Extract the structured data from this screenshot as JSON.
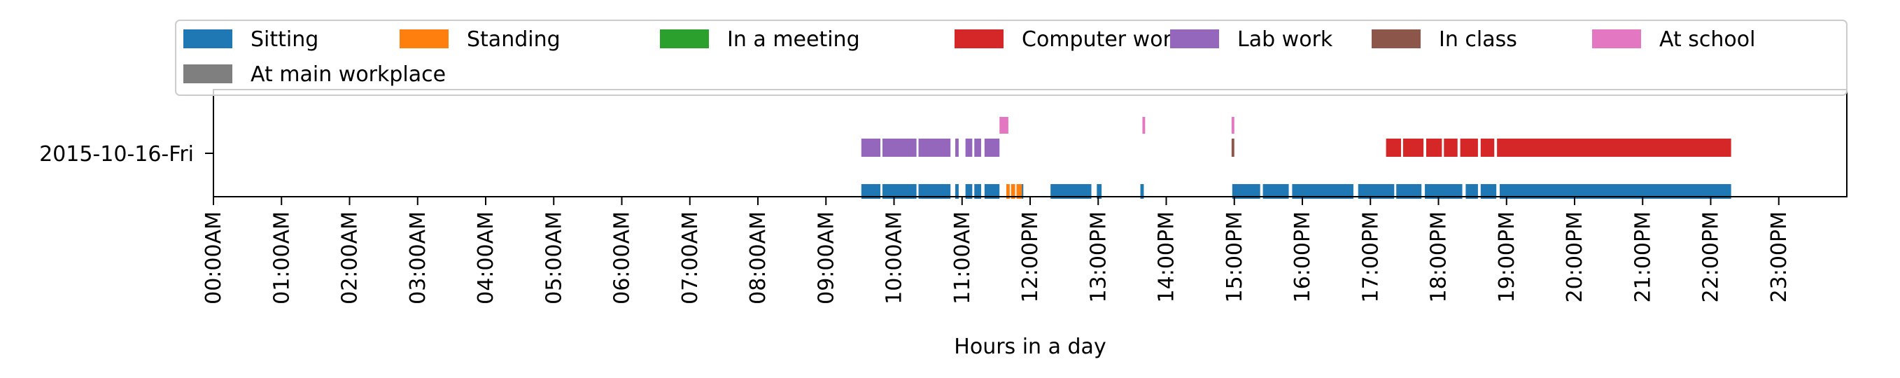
{
  "chart_data": {
    "type": "timeline",
    "xlabel": "Hours in a day",
    "xlim_hours": [
      0,
      24
    ],
    "y_categories": [
      "2015-10-16-Fri"
    ],
    "x_ticks": [
      "00:00AM",
      "01:00AM",
      "02:00AM",
      "03:00AM",
      "04:00AM",
      "05:00AM",
      "06:00AM",
      "07:00AM",
      "08:00AM",
      "09:00AM",
      "10:00AM",
      "11:00AM",
      "12:00PM",
      "13:00PM",
      "14:00PM",
      "15:00PM",
      "16:00PM",
      "17:00PM",
      "18:00PM",
      "19:00PM",
      "20:00PM",
      "21:00PM",
      "22:00PM",
      "23:00PM"
    ],
    "legend_position": "top",
    "series": [
      {
        "name": "Sitting",
        "color": "#1f77b4",
        "lane": "bottom",
        "intervals": [
          [
            9.52,
            9.8
          ],
          [
            9.83,
            10.33
          ],
          [
            10.36,
            10.83
          ],
          [
            10.9,
            10.95
          ],
          [
            11.05,
            11.15
          ],
          [
            11.18,
            11.28
          ],
          [
            11.33,
            11.55
          ],
          [
            11.83,
            11.9
          ],
          [
            12.3,
            12.9
          ],
          [
            12.98,
            13.05
          ],
          [
            13.62,
            13.67
          ],
          [
            14.97,
            15.38
          ],
          [
            15.42,
            15.8
          ],
          [
            15.85,
            16.75
          ],
          [
            16.82,
            17.35
          ],
          [
            17.38,
            17.75
          ],
          [
            17.8,
            18.35
          ],
          [
            18.4,
            18.58
          ],
          [
            18.62,
            18.85
          ],
          [
            18.9,
            22.3
          ]
        ]
      },
      {
        "name": "Standing",
        "color": "#ff7f0e",
        "lane": "bottom",
        "intervals": [
          [
            11.65,
            11.7
          ],
          [
            11.72,
            11.78
          ],
          [
            11.8,
            11.88
          ]
        ]
      },
      {
        "name": "In a meeting",
        "color": "#2ca02c",
        "lane": "bottom",
        "intervals": []
      },
      {
        "name": "Computer work",
        "color": "#d62728",
        "lane": "middle",
        "intervals": [
          [
            17.23,
            17.45
          ],
          [
            17.48,
            17.78
          ],
          [
            17.82,
            18.05
          ],
          [
            18.08,
            18.28
          ],
          [
            18.32,
            18.58
          ],
          [
            18.62,
            18.82
          ],
          [
            18.86,
            22.3
          ]
        ]
      },
      {
        "name": "Lab work",
        "color": "#9467bd",
        "lane": "middle",
        "intervals": [
          [
            9.52,
            9.8
          ],
          [
            9.83,
            10.33
          ],
          [
            10.36,
            10.83
          ],
          [
            10.9,
            10.95
          ],
          [
            11.05,
            11.15
          ],
          [
            11.18,
            11.28
          ],
          [
            11.33,
            11.55
          ]
        ]
      },
      {
        "name": "In class",
        "color": "#8c564b",
        "lane": "middle",
        "intervals": [
          [
            14.96,
            15.0
          ]
        ]
      },
      {
        "name": "At school",
        "color": "#e377c2",
        "lane": "top",
        "intervals": [
          [
            11.55,
            11.68
          ],
          [
            13.65,
            13.69
          ],
          [
            14.96,
            15.0
          ]
        ]
      },
      {
        "name": "At main workplace",
        "color": "#7f7f7f",
        "lane": "top",
        "intervals": []
      }
    ]
  }
}
